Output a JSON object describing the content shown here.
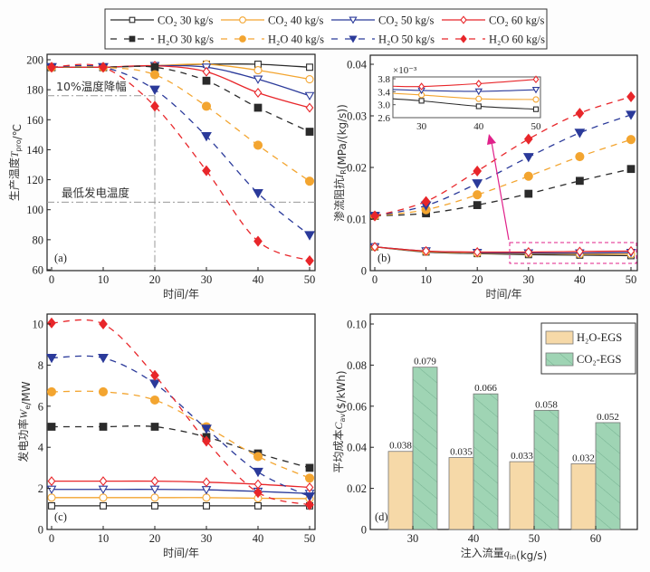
{
  "legend": {
    "series": [
      {
        "key": "co2_30",
        "label": "CO₂ 30 kg/s",
        "color": "#2b2b2b",
        "marker": "square-open",
        "dash": false
      },
      {
        "key": "co2_40",
        "label": "CO₂ 40 kg/s",
        "color": "#f3a530",
        "marker": "circle-open",
        "dash": false
      },
      {
        "key": "co2_50",
        "label": "CO₂ 50 kg/s",
        "color": "#2b3a9a",
        "marker": "triangle-open",
        "dash": false
      },
      {
        "key": "co2_60",
        "label": "CO₂ 60 kg/s",
        "color": "#e8262a",
        "marker": "diamond-open",
        "dash": false
      },
      {
        "key": "h2o_30",
        "label": "H₂O 30 kg/s",
        "color": "#2b2b2b",
        "marker": "square-filled",
        "dash": true
      },
      {
        "key": "h2o_40",
        "label": "H₂O 40 kg/s",
        "color": "#f3a530",
        "marker": "circle-filled",
        "dash": true
      },
      {
        "key": "h2o_50",
        "label": "H₂O 50 kg/s",
        "color": "#2b3a9a",
        "marker": "triangle-filled",
        "dash": true
      },
      {
        "key": "h2o_60",
        "label": "H₂O 60 kg/s",
        "color": "#e8262a",
        "marker": "diamond-filled",
        "dash": true
      }
    ]
  },
  "chart_data": [
    {
      "id": "a",
      "type": "line",
      "panel_label": "(a)",
      "xlabel": "时间/年",
      "ylabel": "生产温度T_pro/℃",
      "xlim": [
        0,
        50
      ],
      "ylim": [
        60,
        200
      ],
      "xticks": [
        0,
        10,
        20,
        30,
        40,
        50
      ],
      "yticks": [
        60,
        80,
        100,
        120,
        140,
        160,
        180,
        200
      ],
      "x": [
        0,
        10,
        20,
        30,
        40,
        50
      ],
      "series": [
        {
          "key": "co2_30",
          "values": [
            195,
            195,
            196,
            197,
            197,
            195
          ]
        },
        {
          "key": "co2_40",
          "values": [
            195,
            195,
            196,
            197,
            193,
            187
          ]
        },
        {
          "key": "co2_50",
          "values": [
            195,
            195,
            196,
            195,
            187,
            176
          ]
        },
        {
          "key": "co2_60",
          "values": [
            195,
            195,
            196,
            192,
            178,
            168
          ]
        },
        {
          "key": "h2o_30",
          "values": [
            195,
            195,
            195,
            186,
            168,
            152
          ]
        },
        {
          "key": "h2o_40",
          "values": [
            195,
            195,
            190,
            169,
            143,
            119
          ]
        },
        {
          "key": "h2o_50",
          "values": [
            195,
            195,
            180,
            149,
            111,
            83
          ]
        },
        {
          "key": "h2o_60",
          "values": [
            195,
            195,
            169,
            126,
            79,
            66
          ]
        }
      ],
      "annotations": [
        {
          "text": "10%温度降幅",
          "y": 176,
          "type": "hline"
        },
        {
          "text": "最低发电温度",
          "y": 105,
          "type": "hline"
        },
        {
          "x": 20,
          "type": "vline"
        }
      ]
    },
    {
      "id": "b",
      "type": "line",
      "panel_label": "(b)",
      "xlabel": "时间/年",
      "ylabel": "渗流阻抗I_R(MPa/(kg/s))",
      "xlim": [
        0,
        50
      ],
      "ylim": [
        0,
        0.04
      ],
      "xticks": [
        0,
        10,
        20,
        30,
        40,
        50
      ],
      "yticks": [
        "0",
        "0.01",
        "0.02",
        "0.03",
        "0.04"
      ],
      "x": [
        0,
        10,
        20,
        30,
        40,
        50
      ],
      "series": [
        {
          "key": "co2_30",
          "values": [
            0.0046,
            0.0036,
            0.0033,
            0.0031,
            0.003,
            0.0029
          ]
        },
        {
          "key": "co2_40",
          "values": [
            0.0046,
            0.0037,
            0.0034,
            0.0033,
            0.0032,
            0.0032
          ]
        },
        {
          "key": "co2_50",
          "values": [
            0.0046,
            0.0038,
            0.0035,
            0.0034,
            0.0034,
            0.0035
          ]
        },
        {
          "key": "co2_60",
          "values": [
            0.0046,
            0.0038,
            0.0036,
            0.0036,
            0.0037,
            0.0038
          ]
        },
        {
          "key": "h2o_30",
          "values": [
            0.0106,
            0.0111,
            0.0127,
            0.0149,
            0.0174,
            0.0197
          ]
        },
        {
          "key": "h2o_40",
          "values": [
            0.0106,
            0.0118,
            0.0147,
            0.0183,
            0.0221,
            0.0254
          ]
        },
        {
          "key": "h2o_50",
          "values": [
            0.0106,
            0.0126,
            0.0169,
            0.022,
            0.0267,
            0.0302
          ]
        },
        {
          "key": "h2o_60",
          "values": [
            0.0106,
            0.0134,
            0.0193,
            0.0255,
            0.0305,
            0.0337
          ]
        }
      ],
      "inset": {
        "scale_label": "×10⁻³",
        "xlim": [
          25,
          50
        ],
        "ylim": [
          2.6,
          3.8
        ],
        "xticks": [
          30,
          40,
          50
        ],
        "yticks": [
          "2.6",
          "3.0",
          "3.4",
          "3.8"
        ],
        "x": [
          30,
          40,
          50
        ],
        "series": [
          {
            "key": "co2_30",
            "values": [
              3.12,
              2.95,
              2.86
            ]
          },
          {
            "key": "co2_40",
            "values": [
              3.3,
              3.18,
              3.16
            ]
          },
          {
            "key": "co2_50",
            "values": [
              3.44,
              3.41,
              3.46
            ]
          },
          {
            "key": "co2_60",
            "values": [
              3.56,
              3.65,
              3.78
            ]
          }
        ],
        "start_values": {
          "co2_30": 3.18,
          "co2_40": 3.35,
          "co2_50": 3.47,
          "co2_60": 3.57
        }
      }
    },
    {
      "id": "c",
      "type": "line",
      "panel_label": "(c)",
      "xlabel": "时间/年",
      "ylabel": "发电功率W_e/MW",
      "xlim": [
        0,
        50
      ],
      "ylim": [
        0,
        10
      ],
      "xticks": [
        0,
        10,
        20,
        30,
        40,
        50
      ],
      "yticks": [
        0,
        2,
        4,
        6,
        8,
        10
      ],
      "x": [
        0,
        10,
        20,
        30,
        40,
        50
      ],
      "series": [
        {
          "key": "co2_30",
          "values": [
            1.15,
            1.15,
            1.15,
            1.15,
            1.15,
            1.15
          ]
        },
        {
          "key": "co2_40",
          "values": [
            1.55,
            1.55,
            1.55,
            1.55,
            1.52,
            1.5
          ]
        },
        {
          "key": "co2_50",
          "values": [
            1.95,
            1.95,
            1.95,
            1.93,
            1.85,
            1.75
          ]
        },
        {
          "key": "co2_60",
          "values": [
            2.35,
            2.35,
            2.35,
            2.3,
            2.2,
            2.05
          ]
        },
        {
          "key": "h2o_30",
          "values": [
            5.0,
            5.0,
            5.0,
            4.5,
            3.7,
            3.0
          ]
        },
        {
          "key": "h2o_40",
          "values": [
            6.7,
            6.7,
            6.3,
            5.0,
            3.55,
            2.5
          ]
        },
        {
          "key": "h2o_50",
          "values": [
            8.35,
            8.35,
            7.1,
            4.9,
            2.8,
            1.6
          ]
        },
        {
          "key": "h2o_60",
          "values": [
            10.05,
            10.0,
            7.5,
            4.3,
            1.8,
            1.2
          ]
        }
      ]
    },
    {
      "id": "d",
      "type": "bar",
      "panel_label": "(d)",
      "xlabel": "注入流量q_in(kg/s)",
      "ylabel": "平均成本C_av($/kWh)",
      "ylim": [
        0,
        0.1
      ],
      "yticks": [
        "0",
        "0.02",
        "0.04",
        "0.06",
        "0.08",
        "0.10"
      ],
      "categories": [
        "30",
        "40",
        "50",
        "60"
      ],
      "legend_position": "top-right",
      "series": [
        {
          "name": "H₂O-EGS",
          "color": "#f6d9a8",
          "hatch": false,
          "values": [
            0.038,
            0.035,
            0.033,
            0.032
          ],
          "labels": [
            "0.038",
            "0.035",
            "0.033",
            "0.032"
          ]
        },
        {
          "name": "CO₂-EGS",
          "color": "#9fd4b4",
          "hatch": true,
          "values": [
            0.079,
            0.066,
            0.058,
            0.052
          ],
          "labels": [
            "0.079",
            "0.066",
            "0.058",
            "0.052"
          ]
        }
      ]
    }
  ]
}
